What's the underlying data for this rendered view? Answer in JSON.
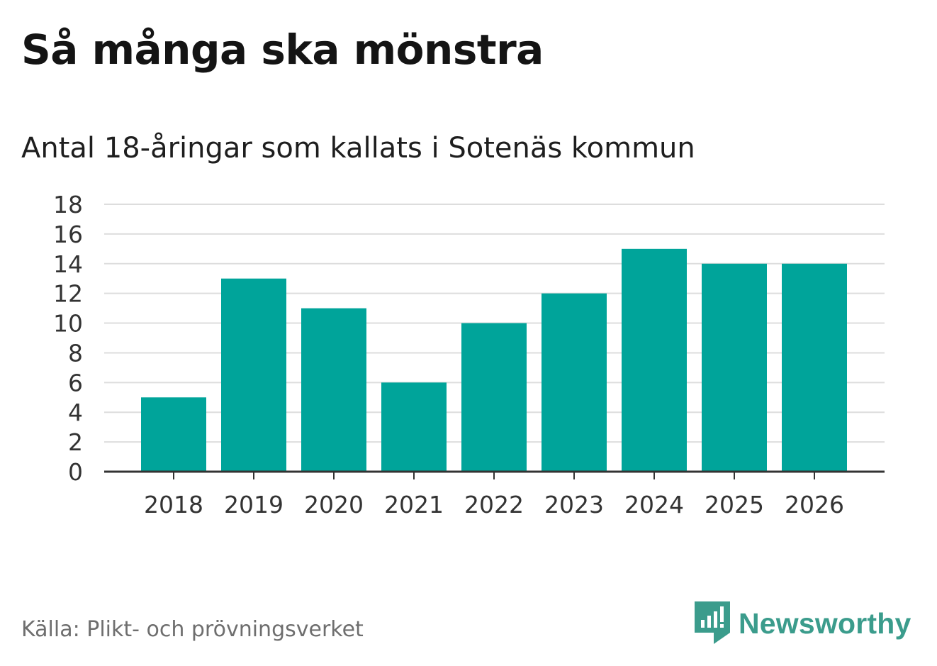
{
  "title": "Så många ska mönstra",
  "subtitle": "Antal 18-åringar som kallats i Sotenäs kommun",
  "source": "Källa: Plikt- och prövningsverket",
  "brand": {
    "name": "Newsworthy",
    "icon": "newsworthy-bar-chart-icon",
    "color": "#3b9c8c"
  },
  "colors": {
    "bar": "#00a49a",
    "grid": "#dddddd",
    "axis": "#333333"
  },
  "chart_data": {
    "type": "bar",
    "title": "Så många ska mönstra",
    "subtitle": "Antal 18-åringar som kallats i Sotenäs kommun",
    "xlabel": "",
    "ylabel": "",
    "categories": [
      "2018",
      "2019",
      "2020",
      "2021",
      "2022",
      "2023",
      "2024",
      "2025",
      "2026"
    ],
    "values": [
      5,
      13,
      11,
      6,
      10,
      12,
      15,
      14,
      14
    ],
    "ylim": [
      0,
      18
    ],
    "yticks": [
      "0",
      "2",
      "4",
      "6",
      "8",
      "10",
      "12",
      "14",
      "16",
      "18"
    ],
    "grid": true,
    "legend": "none"
  }
}
